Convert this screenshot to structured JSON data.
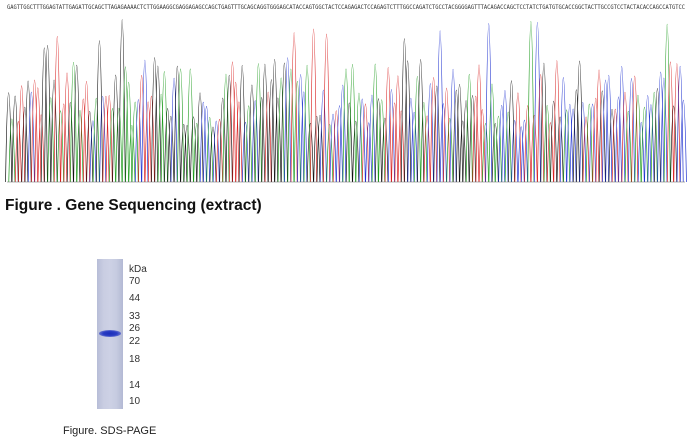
{
  "sequence_figure": {
    "caption": "Figure . Gene Sequencing (extract)",
    "base_colors": {
      "A": "#1a9a1a",
      "C": "#1f32d0",
      "G": "#111111",
      "T": "#d81e1e"
    },
    "sequence_text": "GAGTTGGCTTTGGAGTATTGAGATTGCAGCTTAGAGAAAACTCTTGGAAGGCGAGGAGAGCCAGCTGAGTTTGCAGCAGGTGGGAGCATACCAGTGGCTACTCCAGAGACTCCAGAGTCTTTGGCCAGATCTGCCTACGGGGAGTTTACAGACCAGCTCCTATCTGATGTGCACCGGCTACTTGCCGTCCTACTACACCAGCCATGTCC"
  },
  "sds_page": {
    "unit": "kDa",
    "markers": [
      "70",
      "44",
      "33",
      "26",
      "22",
      "18",
      "14",
      "10"
    ],
    "caption": "Figure. SDS-PAGE"
  }
}
